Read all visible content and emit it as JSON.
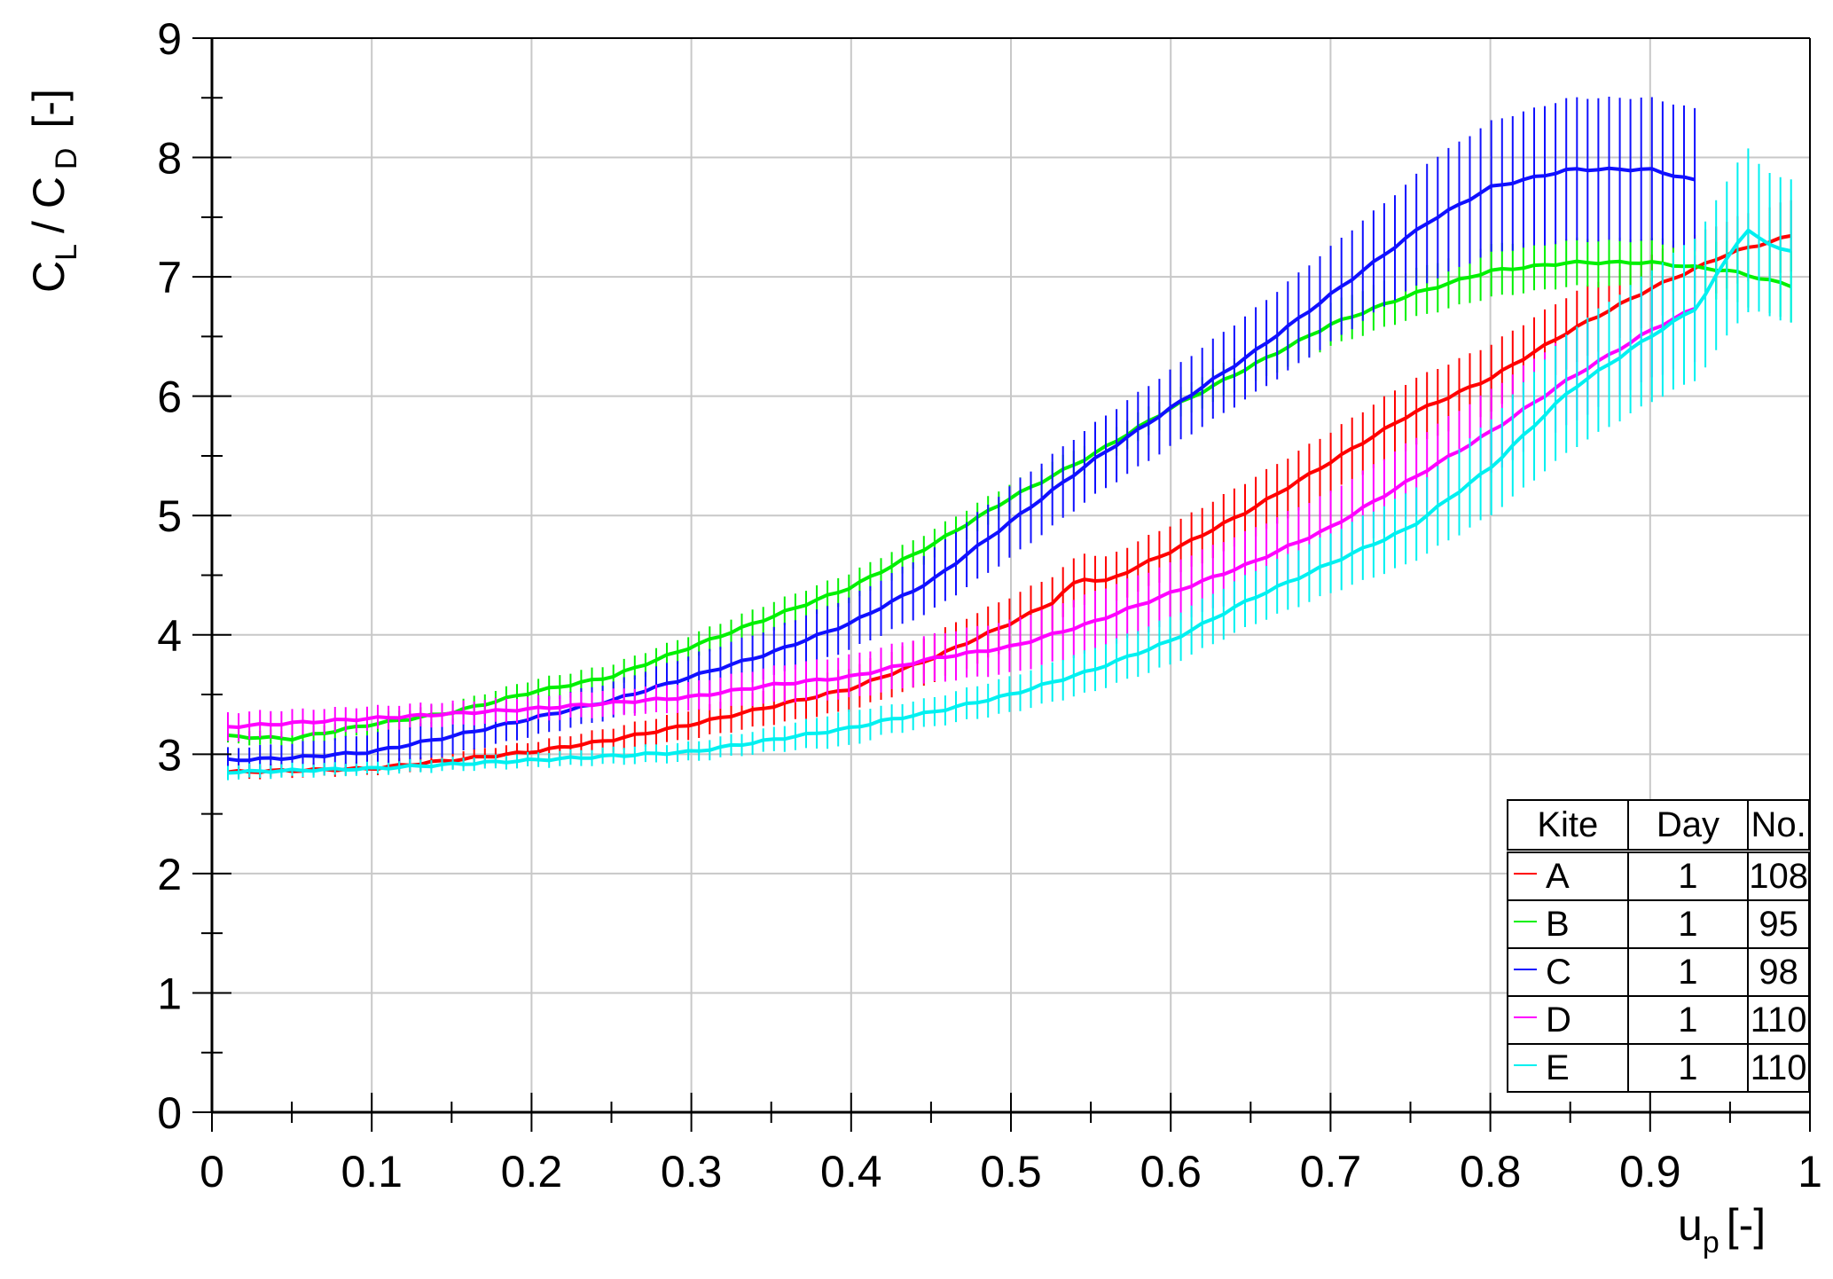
{
  "chart_data": {
    "type": "line",
    "title": "",
    "xlabel": "u",
    "xlabel_sub": "p",
    "xlabel_unit": "[-]",
    "ylabel_parts": [
      "C",
      "L",
      "/ C",
      "D",
      "[-]"
    ],
    "xlim": [
      0,
      1
    ],
    "ylim": [
      0,
      9
    ],
    "xticks": [
      "0",
      "0.1",
      "0.2",
      "0.3",
      "0.4",
      "0.5",
      "0.6",
      "0.7",
      "0.8",
      "0.9",
      "1"
    ],
    "yticks": [
      "0",
      "1",
      "2",
      "3",
      "4",
      "5",
      "6",
      "7",
      "8",
      "9"
    ],
    "grid": true,
    "legend": {
      "placement": "bottom-right",
      "headers": [
        "Kite",
        "Day",
        "No."
      ],
      "rows": [
        {
          "kite": "A",
          "day": "1",
          "no": "108"
        },
        {
          "kite": "B",
          "day": "1",
          "no": "95"
        },
        {
          "kite": "C",
          "day": "1",
          "no": "98"
        },
        {
          "kite": "D",
          "day": "1",
          "no": "110"
        },
        {
          "kite": "E",
          "day": "1",
          "no": "110"
        }
      ]
    },
    "series": [
      {
        "name": "A",
        "color": "#ff0000",
        "x": [
          0.01,
          0.1,
          0.2,
          0.25,
          0.3,
          0.35,
          0.4,
          0.45,
          0.5,
          0.53,
          0.535,
          0.55,
          0.555,
          0.6,
          0.65,
          0.7,
          0.75,
          0.8,
          0.85,
          0.9,
          0.95,
          0.99
        ],
        "y": [
          2.85,
          2.88,
          3.02,
          3.12,
          3.25,
          3.4,
          3.55,
          3.8,
          4.1,
          4.3,
          4.4,
          4.5,
          4.42,
          4.7,
          5.05,
          5.45,
          5.85,
          6.15,
          6.55,
          6.9,
          7.2,
          7.35
        ],
        "err": [
          0.06,
          0.05,
          0.08,
          0.1,
          0.12,
          0.15,
          0.18,
          0.2,
          0.22,
          0.22,
          0.2,
          0.22,
          0.2,
          0.22,
          0.25,
          0.25,
          0.28,
          0.28,
          0.3,
          0.28,
          0.28,
          0.3
        ]
      },
      {
        "name": "B",
        "color": "#00f000",
        "x": [
          0.01,
          0.05,
          0.1,
          0.15,
          0.2,
          0.25,
          0.3,
          0.35,
          0.4,
          0.45,
          0.5,
          0.55,
          0.6,
          0.65,
          0.7,
          0.75,
          0.8,
          0.85,
          0.9,
          0.95,
          0.99
        ],
        "y": [
          3.15,
          3.13,
          3.25,
          3.35,
          3.52,
          3.65,
          3.9,
          4.15,
          4.4,
          4.75,
          5.15,
          5.5,
          5.9,
          6.25,
          6.6,
          6.85,
          7.05,
          7.12,
          7.12,
          7.05,
          6.92
        ],
        "err": [
          0.06,
          0.06,
          0.08,
          0.08,
          0.1,
          0.1,
          0.1,
          0.12,
          0.12,
          0.12,
          0.12,
          0.12,
          0.12,
          0.15,
          0.18,
          0.2,
          0.22,
          0.2,
          0.2,
          0.25,
          0.3
        ]
      },
      {
        "name": "C",
        "color": "#1010ff",
        "x": [
          0.01,
          0.05,
          0.1,
          0.15,
          0.2,
          0.25,
          0.3,
          0.35,
          0.4,
          0.45,
          0.5,
          0.55,
          0.6,
          0.65,
          0.7,
          0.75,
          0.76,
          0.8,
          0.85,
          0.9,
          0.93
        ],
        "y": [
          2.95,
          2.97,
          3.02,
          3.15,
          3.3,
          3.45,
          3.65,
          3.85,
          4.1,
          4.45,
          4.95,
          5.45,
          5.9,
          6.35,
          6.85,
          7.35,
          7.45,
          7.75,
          7.9,
          7.9,
          7.8
        ],
        "err": [
          0.1,
          0.12,
          0.15,
          0.15,
          0.15,
          0.15,
          0.18,
          0.2,
          0.22,
          0.25,
          0.3,
          0.3,
          0.32,
          0.35,
          0.4,
          0.45,
          0.5,
          0.55,
          0.6,
          0.6,
          0.6
        ]
      },
      {
        "name": "D",
        "color": "#ff00ff",
        "x": [
          0.01,
          0.1,
          0.2,
          0.3,
          0.35,
          0.4,
          0.45,
          0.5,
          0.55,
          0.6,
          0.65,
          0.7,
          0.75,
          0.8,
          0.85,
          0.9,
          0.93
        ],
        "y": [
          3.23,
          3.3,
          3.38,
          3.48,
          3.58,
          3.65,
          3.8,
          3.9,
          4.1,
          4.35,
          4.6,
          4.9,
          5.3,
          5.7,
          6.15,
          6.55,
          6.75
        ],
        "err": [
          0.12,
          0.1,
          0.1,
          0.12,
          0.15,
          0.18,
          0.2,
          0.22,
          0.25,
          0.25,
          0.28,
          0.3,
          0.32,
          0.35,
          0.38,
          0.4,
          0.45
        ]
      },
      {
        "name": "E",
        "color": "#00f0f0",
        "x": [
          0.01,
          0.1,
          0.2,
          0.3,
          0.35,
          0.4,
          0.42,
          0.45,
          0.5,
          0.55,
          0.6,
          0.65,
          0.7,
          0.75,
          0.8,
          0.85,
          0.9,
          0.93,
          0.95,
          0.96,
          0.97,
          0.99
        ],
        "y": [
          2.85,
          2.88,
          2.95,
          3.02,
          3.12,
          3.22,
          3.28,
          3.35,
          3.5,
          3.7,
          3.95,
          4.3,
          4.6,
          4.9,
          5.4,
          6.05,
          6.5,
          6.75,
          7.2,
          7.4,
          7.3,
          7.2
        ],
        "err": [
          0.06,
          0.05,
          0.06,
          0.08,
          0.1,
          0.15,
          0.12,
          0.12,
          0.15,
          0.18,
          0.2,
          0.22,
          0.25,
          0.3,
          0.4,
          0.5,
          0.55,
          0.6,
          0.65,
          0.7,
          0.6,
          0.6
        ]
      }
    ]
  }
}
